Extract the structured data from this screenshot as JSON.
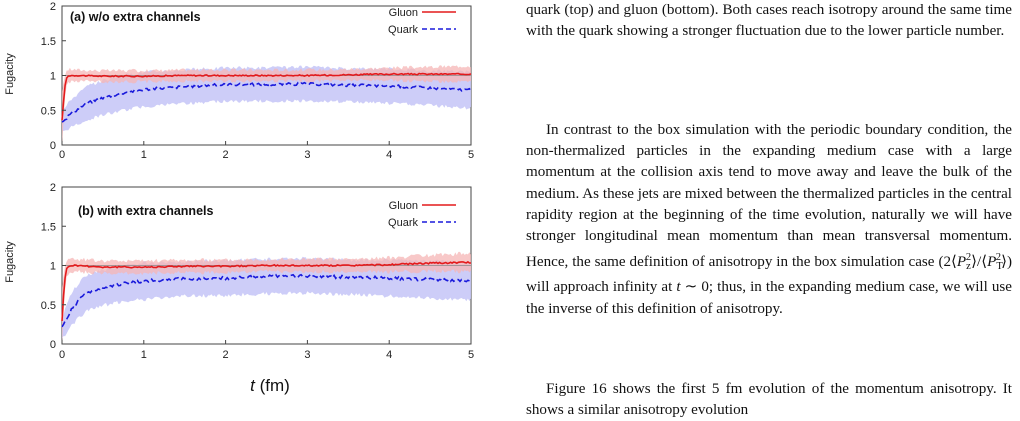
{
  "figure": {
    "xlabel_italic": "t",
    "xlabel_unit": " (fm)",
    "ylabel": "Fugacity",
    "panel_a_title": "(a) w/o extra channels",
    "panel_b_title": "(b) with extra channels",
    "legend": {
      "gluon": "Gluon",
      "quark": "Quark"
    },
    "colors": {
      "gluon": "#e31a1c",
      "gluon_band": "#f6b5b5",
      "quark": "#1a1adb",
      "quark_band": "#c4c4f7"
    }
  },
  "chart_data": [
    {
      "type": "line",
      "title": "(a) w/o extra channels",
      "xlabel": "",
      "ylabel": "Fugacity",
      "xlim": [
        0,
        5
      ],
      "ylim": [
        0,
        2
      ],
      "xticks": [
        0,
        1,
        2,
        3,
        4,
        5
      ],
      "yticks": [
        0,
        0.5,
        1,
        1.5,
        2
      ],
      "legend_position": "top-right",
      "series": [
        {
          "name": "Gluon",
          "x": [
            0,
            0.03,
            0.06,
            0.1,
            0.2,
            0.5,
            1,
            1.5,
            2,
            2.5,
            3,
            3.5,
            4,
            4.5,
            5
          ],
          "y": [
            0.35,
            0.8,
            0.98,
            1.0,
            1.0,
            0.99,
            0.99,
            1.0,
            1.0,
            1.0,
            1.0,
            1.01,
            1.02,
            1.02,
            1.02
          ],
          "band_width": [
            0.4,
            0.2,
            0.1,
            0.09,
            0.08,
            0.08,
            0.08,
            0.08,
            0.08,
            0.08,
            0.08,
            0.08,
            0.09,
            0.1,
            0.12
          ]
        },
        {
          "name": "Quark",
          "x": [
            0,
            0.05,
            0.1,
            0.2,
            0.3,
            0.5,
            0.75,
            1,
            1.5,
            2,
            2.5,
            3,
            3.5,
            4,
            4.5,
            5
          ],
          "y": [
            0.35,
            0.38,
            0.45,
            0.52,
            0.6,
            0.68,
            0.75,
            0.8,
            0.84,
            0.87,
            0.87,
            0.88,
            0.86,
            0.85,
            0.82,
            0.79
          ],
          "band_width": [
            0.15,
            0.17,
            0.2,
            0.22,
            0.24,
            0.25,
            0.25,
            0.25,
            0.24,
            0.24,
            0.24,
            0.24,
            0.24,
            0.25,
            0.25,
            0.26
          ]
        }
      ]
    },
    {
      "type": "line",
      "title": "(b) with extra channels",
      "xlabel": "t (fm)",
      "ylabel": "Fugacity",
      "xlim": [
        0,
        5
      ],
      "ylim": [
        0,
        2
      ],
      "xticks": [
        0,
        1,
        2,
        3,
        4,
        5
      ],
      "yticks": [
        0,
        0.5,
        1,
        1.5,
        2
      ],
      "legend_position": "top-right",
      "series": [
        {
          "name": "Gluon",
          "x": [
            0,
            0.03,
            0.06,
            0.1,
            0.2,
            0.5,
            1,
            1.5,
            2,
            2.5,
            3,
            3.5,
            4,
            4.5,
            5
          ],
          "y": [
            0.3,
            0.8,
            0.97,
            1.0,
            1.0,
            0.98,
            0.98,
            0.99,
            0.99,
            1.0,
            1.0,
            1.0,
            1.01,
            1.03,
            1.04
          ],
          "band_width": [
            0.4,
            0.2,
            0.1,
            0.09,
            0.08,
            0.08,
            0.08,
            0.08,
            0.08,
            0.08,
            0.08,
            0.08,
            0.09,
            0.1,
            0.12
          ]
        },
        {
          "name": "Quark",
          "x": [
            0,
            0.05,
            0.1,
            0.2,
            0.3,
            0.5,
            0.75,
            1,
            1.5,
            2,
            2.5,
            3,
            3.5,
            4,
            4.5,
            5
          ],
          "y": [
            0.2,
            0.3,
            0.42,
            0.55,
            0.65,
            0.72,
            0.77,
            0.8,
            0.83,
            0.84,
            0.86,
            0.87,
            0.85,
            0.84,
            0.82,
            0.8
          ],
          "band_width": [
            0.15,
            0.17,
            0.2,
            0.22,
            0.23,
            0.23,
            0.23,
            0.23,
            0.22,
            0.22,
            0.22,
            0.22,
            0.22,
            0.23,
            0.23,
            0.24
          ]
        }
      ]
    }
  ],
  "text": {
    "caption": "quark (top) and gluon (bottom). Both cases reach isotropy around the same time with the quark showing a stronger fluctuation due to the lower particle number.",
    "para1_a": "In contrast to the box simulation with the periodic boundary condition, the non-thermalized particles in the expanding medium case with a large momentum at the collision axis tend to move away and leave the bulk of the medium. As these jets are mixed between the thermalized particles in the central rapidity region at the beginning of the time evolution, naturally we will have stronger longitudinal mean momentum than mean transversal momentum. Hence, the same definition of anisotropy in the box simulation case ",
    "formula": "(2⟨P_z²⟩/⟨P_T²⟩)",
    "para1_b": " will approach infinity at ",
    "t_sym": "t",
    "para1_c": " ∼ 0; thus, in the expanding medium case, we will use the inverse of this definition of anisotropy.",
    "para2": "Figure 16 shows the first 5 fm evolution of the momentum anisotropy. It shows a similar anisotropy evolution"
  }
}
